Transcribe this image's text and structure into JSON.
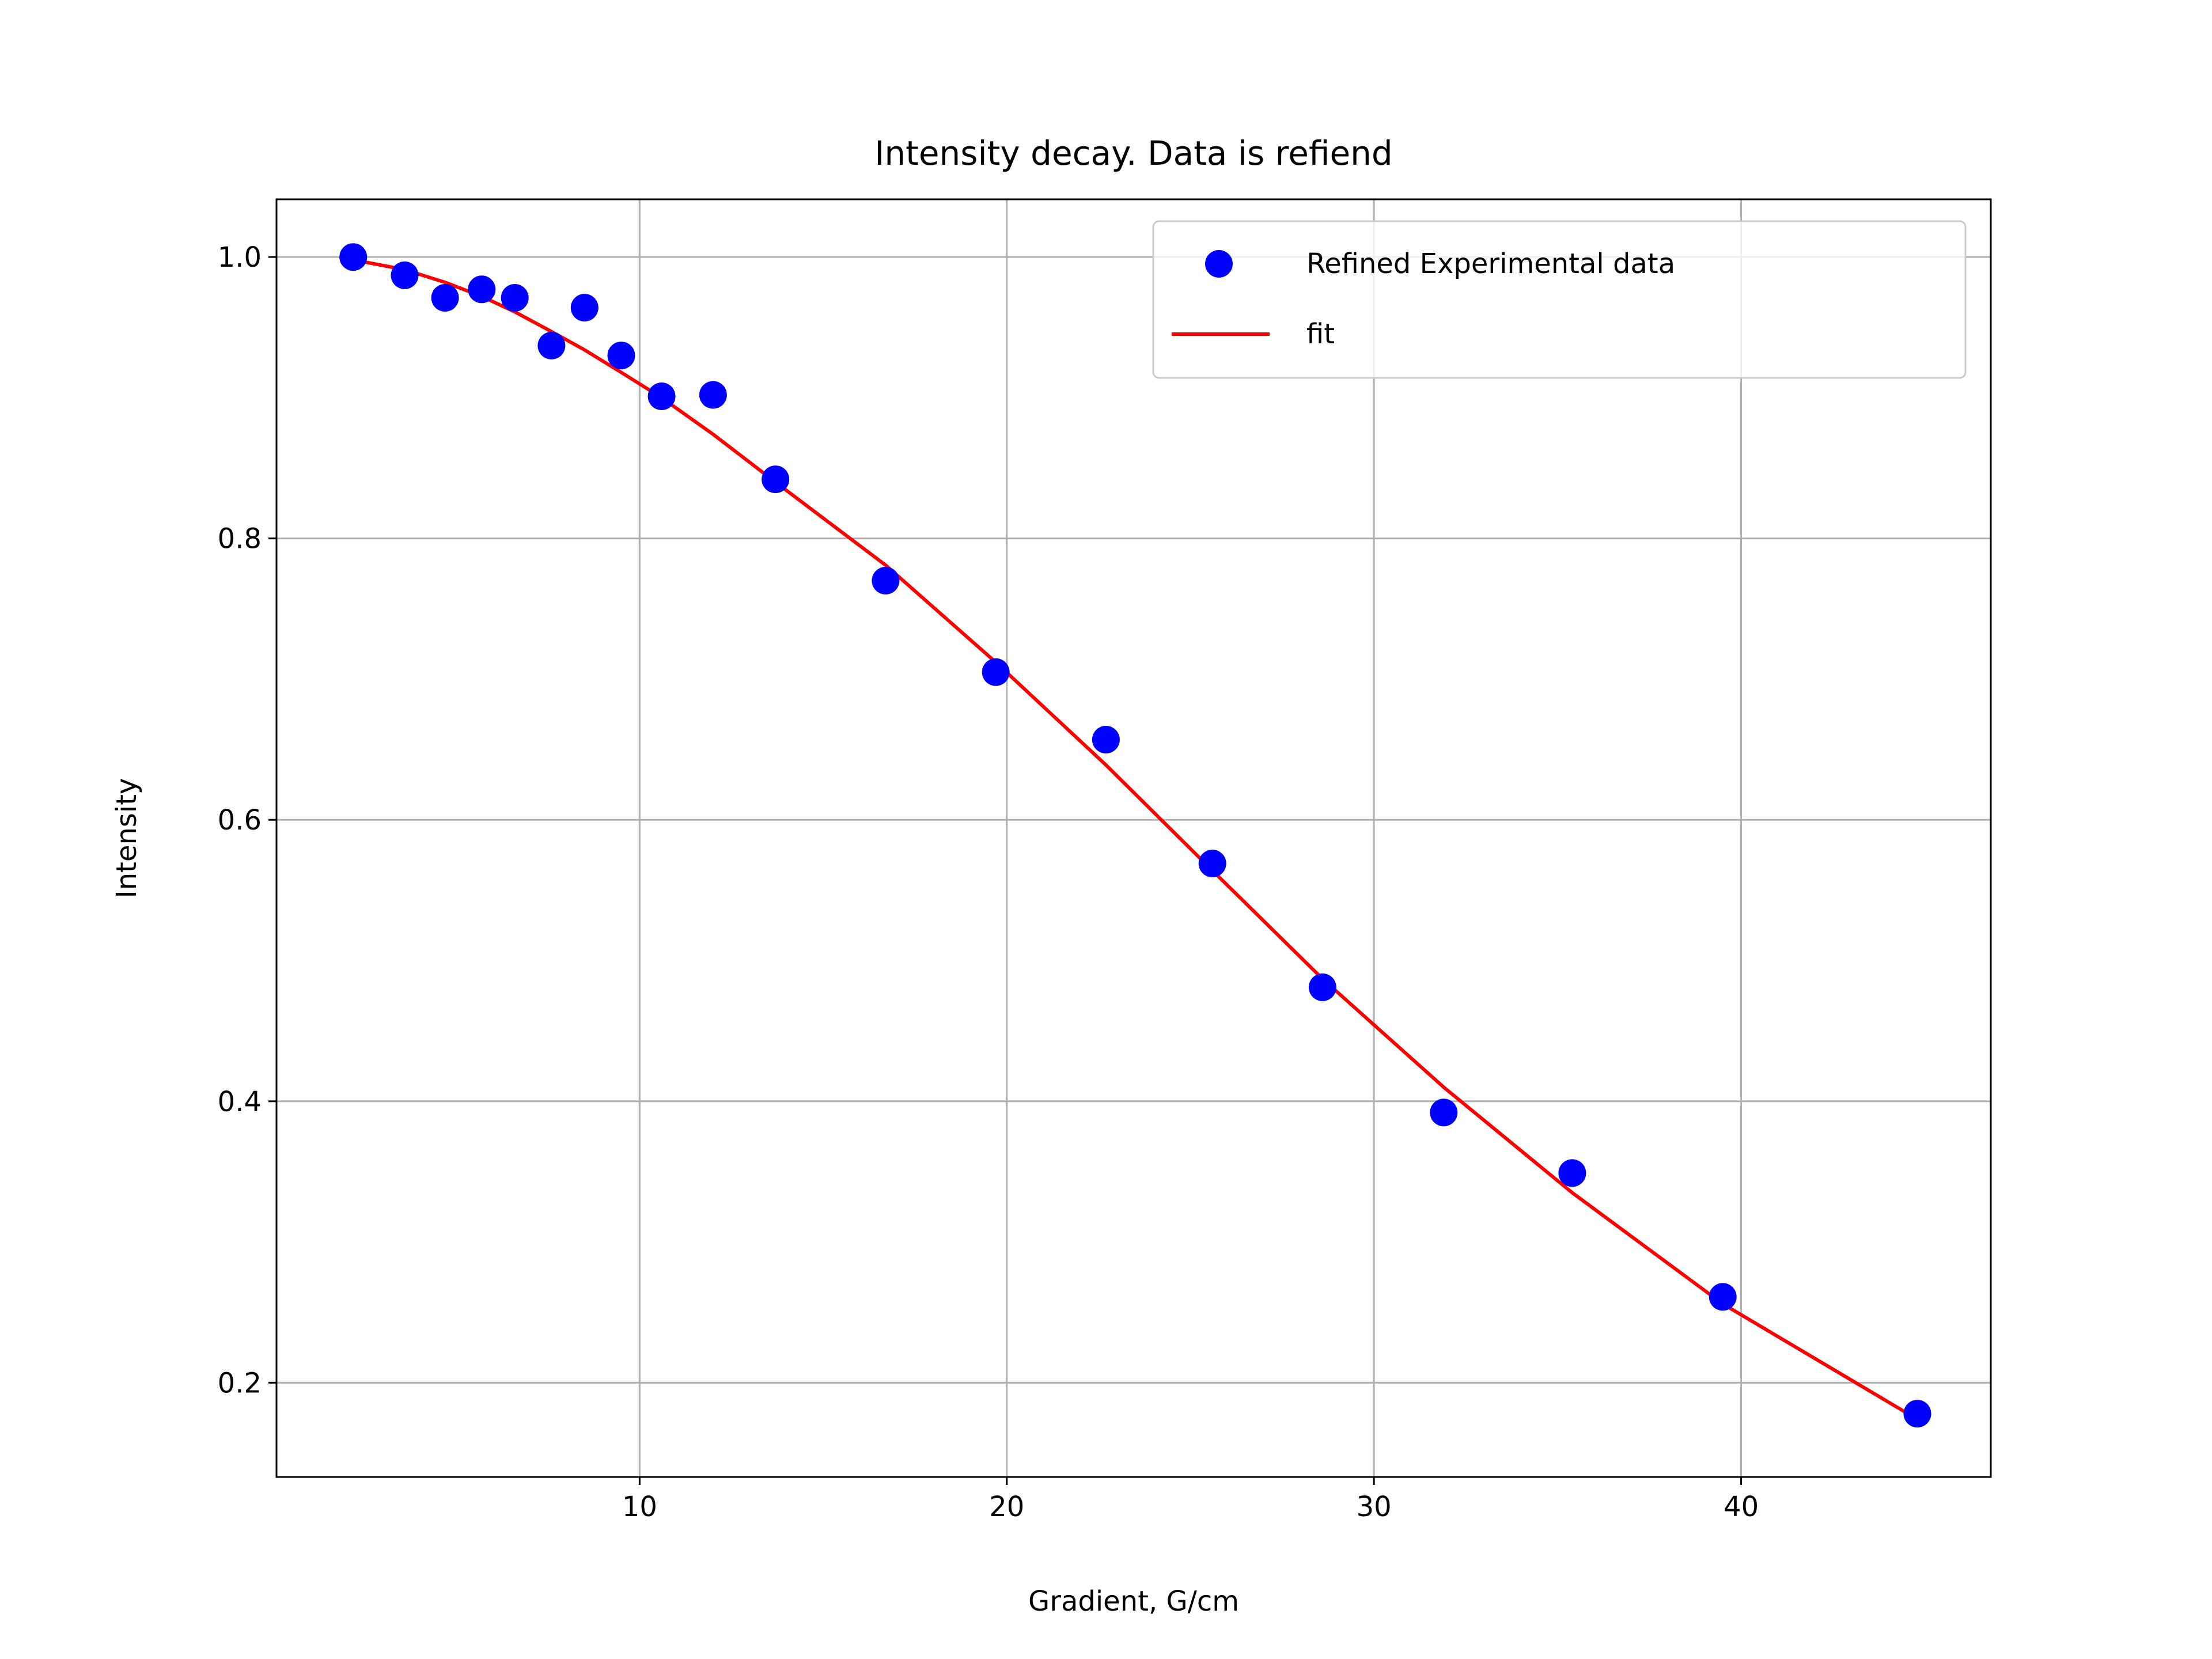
{
  "chart_data": {
    "type": "scatter",
    "title": "Intensity decay. Data is refiend",
    "xlabel": "Gradient, G/cm",
    "ylabel": "Intensity",
    "xlim": [
      0.11,
      46.8
    ],
    "ylim": [
      0.133,
      1.041
    ],
    "xticks": [
      10,
      20,
      30,
      40
    ],
    "yticks": [
      0.2,
      0.4,
      0.6,
      0.8,
      1.0
    ],
    "xtick_labels": [
      "10",
      "20",
      "30",
      "40"
    ],
    "ytick_labels": [
      "0.2",
      "0.4",
      "0.6",
      "0.8",
      "1.0"
    ],
    "grid": true,
    "legend_position": "top-right",
    "series": [
      {
        "name": "Refined Experimental data",
        "kind": "scatter",
        "color": "#0000ff",
        "x": [
          2.2,
          3.6,
          4.7,
          5.7,
          6.6,
          7.6,
          8.5,
          9.5,
          10.6,
          12.0,
          13.7,
          16.7,
          19.7,
          22.7,
          25.6,
          28.6,
          31.9,
          35.4,
          39.5,
          44.8
        ],
        "y": [
          1.0,
          0.987,
          0.971,
          0.977,
          0.971,
          0.937,
          0.964,
          0.93,
          0.901,
          0.902,
          0.842,
          0.77,
          0.705,
          0.657,
          0.569,
          0.481,
          0.392,
          0.349,
          0.261,
          0.178
        ]
      },
      {
        "name": "fit",
        "kind": "line",
        "color": "#ff0000",
        "x": [
          2.2,
          3.6,
          4.7,
          5.7,
          6.6,
          7.6,
          8.5,
          9.5,
          10.6,
          12.0,
          13.7,
          16.7,
          19.7,
          22.7,
          25.6,
          28.6,
          31.9,
          35.4,
          39.5,
          44.8
        ],
        "y": [
          0.998,
          0.991,
          0.982,
          0.972,
          0.961,
          0.947,
          0.934,
          0.918,
          0.9,
          0.874,
          0.84,
          0.781,
          0.712,
          0.639,
          0.564,
          0.487,
          0.41,
          0.335,
          0.256,
          0.174
        ]
      }
    ]
  }
}
